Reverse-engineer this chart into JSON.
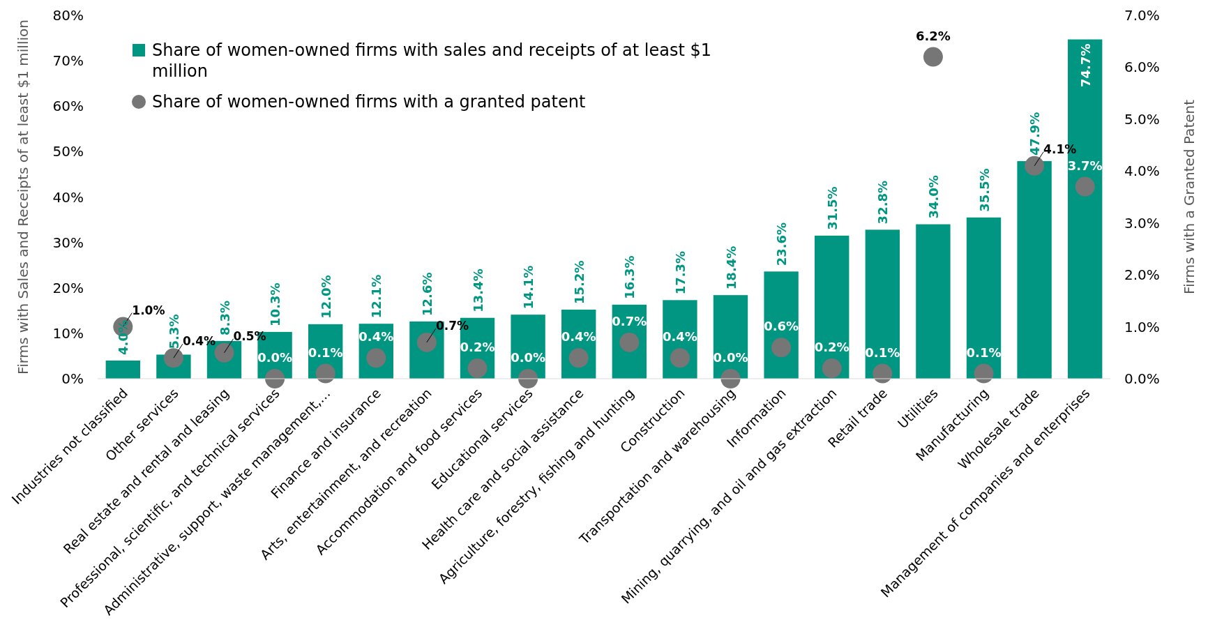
{
  "chart_data": {
    "type": "bar",
    "categories": [
      "Industries not classified",
      "Other services",
      "Real estate and rental and leasing",
      "Professional, scientific, and technical services",
      "Administrative, support, waste management,…",
      "Finance and insurance",
      "Arts, entertainment, and recreation",
      "Accommodation and food services",
      "Educational services",
      "Health care and social assistance",
      "Agriculture, forestry, fishing and hunting",
      "Construction",
      "Transportation and warehousing",
      "Information",
      "Mining, quarrying, and oil and gas extraction",
      "Retail trade",
      "Utilities",
      "Manufacturing",
      "Wholesale trade",
      "Management of companies and enterprises"
    ],
    "series": [
      {
        "name": "Share of women-owned firms with sales and receipts of at least $1 million",
        "color": "#009681",
        "values": [
          4.0,
          5.3,
          8.3,
          10.3,
          12.0,
          12.1,
          12.6,
          13.4,
          14.1,
          15.2,
          16.3,
          17.3,
          18.4,
          23.6,
          31.5,
          32.8,
          34.0,
          35.5,
          47.9,
          74.7
        ],
        "value_labels": [
          "4.0%",
          "5.3%",
          "8.3%",
          "10.3%",
          "12.0%",
          "12.1%",
          "12.6%",
          "13.4%",
          "14.1%",
          "15.2%",
          "16.3%",
          "17.3%",
          "18.4%",
          "23.6%",
          "31.5%",
          "32.8%",
          "34.0%",
          "35.5%",
          "47.9%",
          "74.7%"
        ]
      },
      {
        "name": "Share of women-owned firms with a granted patent",
        "type": "scatter",
        "axis": "y2",
        "color": "#767676",
        "marker": "circle",
        "values": [
          1.0,
          0.4,
          0.5,
          0.0,
          0.1,
          0.4,
          0.7,
          0.2,
          0.0,
          0.4,
          0.7,
          0.4,
          0.0,
          0.6,
          0.2,
          0.1,
          6.2,
          0.1,
          4.1,
          3.7
        ],
        "value_labels": [
          "1.0%",
          "0.4%",
          "0.5%",
          "0.0%",
          "0.1%",
          "0.4%",
          "0.7%",
          "0.2%",
          "0.0%",
          "0.4%",
          "0.7%",
          "0.4%",
          "0.0%",
          "0.6%",
          "0.2%",
          "0.1%",
          "6.2%",
          "0.1%",
          "4.1%",
          "3.7%"
        ]
      }
    ],
    "ylabel": "Firms with Sales and Receipts of at least $1 million",
    "y2label": "Firms with a Granted Patent",
    "ylim": [
      0,
      80
    ],
    "yticks": [
      {
        "value": 0,
        "label": "0%"
      },
      {
        "value": 10,
        "label": "10%"
      },
      {
        "value": 20,
        "label": "20%"
      },
      {
        "value": 30,
        "label": "30%"
      },
      {
        "value": 40,
        "label": "40%"
      },
      {
        "value": 50,
        "label": "50%"
      },
      {
        "value": 60,
        "label": "60%"
      },
      {
        "value": 70,
        "label": "70%"
      },
      {
        "value": 80,
        "label": "80%"
      }
    ],
    "y2lim": [
      0,
      7
    ],
    "y2ticks": [
      {
        "value": 0,
        "label": "0.0%"
      },
      {
        "value": 1,
        "label": "1.0%"
      },
      {
        "value": 2,
        "label": "2.0%"
      },
      {
        "value": 3,
        "label": "3.0%"
      },
      {
        "value": 4,
        "label": "4.0%"
      },
      {
        "value": 5,
        "label": "5.0%"
      },
      {
        "value": 6,
        "label": "6.0%"
      },
      {
        "value": 7,
        "label": "7.0%"
      }
    ],
    "legend": "top left"
  }
}
